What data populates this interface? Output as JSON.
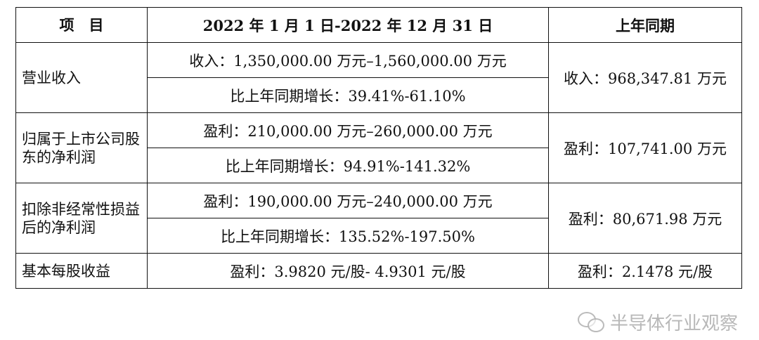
{
  "header": {
    "item": "项　目",
    "period": "2022 年 1 月 1 日-2022 年 12 月 31 日",
    "prior": "上年同期"
  },
  "rows": [
    {
      "item": "营业收入",
      "range": "收入：1,350,000.00 万元–1,560,000.00 万元",
      "growth": "比上年同期增长：39.41%-61.10%",
      "prior": "收入：968,347.81 万元"
    },
    {
      "item": "归属于上市公司股东的净利润",
      "range": "盈利：210,000.00 万元–260,000.00 万元",
      "growth": "比上年同期增长：94.91%-141.32%",
      "prior": "盈利：107,741.00 万元"
    },
    {
      "item": "扣除非经常性损益后的净利润",
      "range": "盈利：190,000.00 万元–240,000.00 万元",
      "growth": "比上年同期增长：135.52%-197.50%",
      "prior": "盈利：80,671.98 万元"
    },
    {
      "item": "基本每股收益",
      "range": "盈利：3.9820 元/股- 4.9301 元/股",
      "prior": "盈利：2.1478 元/股"
    }
  ],
  "watermark": {
    "text": "半导体行业观察",
    "icon": "wechat-icon"
  }
}
